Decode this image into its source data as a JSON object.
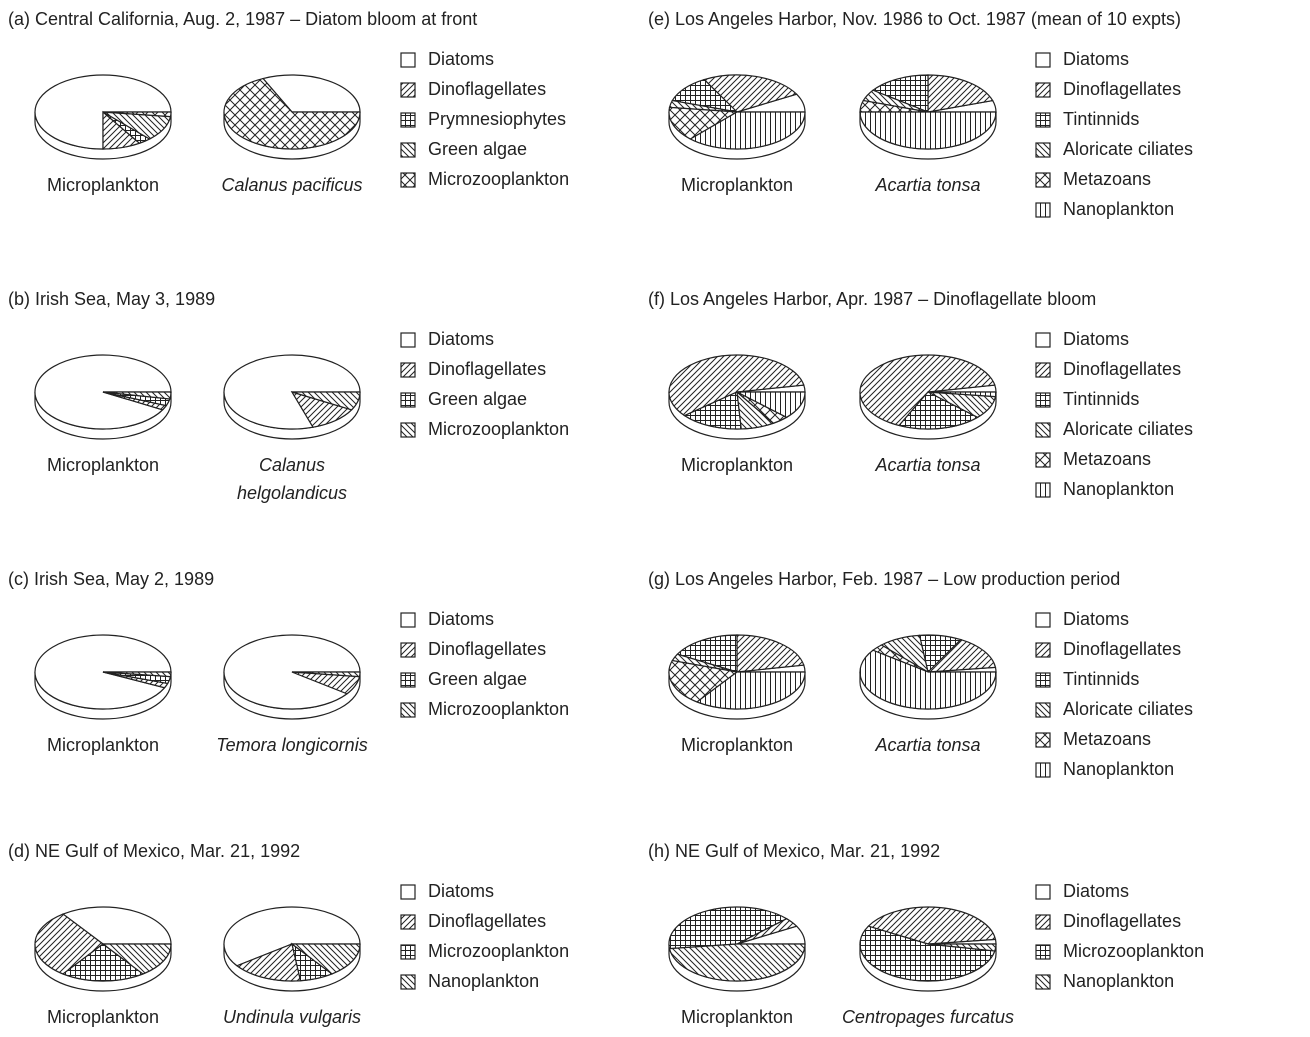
{
  "chart_data": [
    {
      "type": "pie",
      "title": "(a) Central California,  Aug. 2, 1987  – Diatom bloom at front",
      "categories": [
        "Diatoms",
        "Dinoflagellates",
        "Prymnesiophytes",
        "Green algae",
        "Microzooplankton"
      ],
      "patterns": [
        "none",
        "diag",
        "grid",
        "backdiag",
        "cross"
      ],
      "series": [
        {
          "name": "Microplankton",
          "values": [
            75,
            9,
            3,
            11,
            2
          ]
        },
        {
          "name": "Calanus pacificus",
          "values": [
            32,
            0,
            0,
            0,
            68
          ]
        }
      ]
    },
    {
      "type": "pie",
      "title": "(e) Los Angeles Harbor,  Nov. 1986  to Oct. 1987 (mean of 10 expts)",
      "categories": [
        "Diatoms",
        "Dinoflagellates",
        "Tintinnids",
        "Aloricate ciliates",
        "Metazoans",
        "Nanoplankton"
      ],
      "patterns": [
        "none",
        "diag",
        "grid",
        "backdiag",
        "cross",
        "vertical"
      ],
      "series": [
        {
          "name": "Microplankton",
          "values": [
            8,
            25,
            12,
            3,
            15,
            37
          ]
        },
        {
          "name": "Acartia tonsa",
          "values": [
            5,
            20,
            15,
            5,
            5,
            50
          ]
        }
      ]
    },
    {
      "type": "pie",
      "title": "(b) Irish Sea,  May 3, 1989",
      "categories": [
        "Diatoms",
        "Dinoflagellates",
        "Green algae",
        "Microzooplankton"
      ],
      "patterns": [
        "none",
        "diag",
        "grid",
        "backdiag"
      ],
      "series": [
        {
          "name": "Microplankton",
          "values": [
            92,
            2,
            3,
            3
          ]
        },
        {
          "name": "Calanus helgolandicus",
          "values": [
            80,
            12,
            0,
            8
          ]
        }
      ]
    },
    {
      "type": "pie",
      "title": "(f) Los Angeles Harbor,  Apr. 1987  – Dinoflagellate bloom",
      "categories": [
        "Diatoms",
        "Dinoflagellates",
        "Tintinnids",
        "Aloricate ciliates",
        "Metazoans",
        "Nanoplankton"
      ],
      "patterns": [
        "none",
        "diag",
        "grid",
        "backdiag",
        "cross",
        "vertical"
      ],
      "series": [
        {
          "name": "Microplankton",
          "values": [
            3,
            58,
            15,
            8,
            4,
            12
          ]
        },
        {
          "name": "Acartia tonsa",
          "values": [
            3,
            65,
            20,
            10,
            0,
            2
          ]
        }
      ]
    },
    {
      "type": "pie",
      "title": "(c) Irish Sea,  May 2, 1989",
      "categories": [
        "Diatoms",
        "Dinoflagellates",
        "Green algae",
        "Microzooplankton"
      ],
      "patterns": [
        "none",
        "diag",
        "grid",
        "backdiag"
      ],
      "series": [
        {
          "name": "Microplankton",
          "values": [
            93,
            2,
            3,
            2
          ]
        },
        {
          "name": "Temora longicornis",
          "values": [
            90,
            8,
            0,
            2
          ]
        }
      ]
    },
    {
      "type": "pie",
      "title": "(g) Los Angeles Harbor,  Feb. 1987  – Low production period",
      "categories": [
        "Diatoms",
        "Dinoflagellates",
        "Tintinnids",
        "Aloricate ciliates",
        "Metazoans",
        "Nanoplankton"
      ],
      "patterns": [
        "none",
        "diag",
        "grid",
        "backdiag",
        "cross",
        "vertical"
      ],
      "series": [
        {
          "name": "Microplankton",
          "values": [
            3,
            22,
            17,
            3,
            20,
            35
          ]
        },
        {
          "name": "Acartia tonsa",
          "values": [
            2,
            15,
            10,
            10,
            3,
            60
          ]
        }
      ]
    },
    {
      "type": "pie",
      "title": "(d) NE Gulf of Mexico,  Mar. 21, 1992",
      "categories": [
        "Diatoms",
        "Dinoflagellates",
        "Microzooplankton",
        "Nanoplankton"
      ],
      "patterns": [
        "none",
        "diag",
        "grid",
        "backdiag"
      ],
      "series": [
        {
          "name": "Microplankton",
          "values": [
            35,
            30,
            20,
            15
          ]
        },
        {
          "name": "Undinula vulgaris",
          "values": [
            60,
            17,
            8,
            15
          ]
        }
      ]
    },
    {
      "type": "pie",
      "title": "(h) NE Gulf of Mexico,  Mar. 21, 1992",
      "categories": [
        "Diatoms",
        "Dinoflagellates",
        "Microzooplankton",
        "Nanoplankton"
      ],
      "patterns": [
        "none",
        "diag",
        "grid",
        "backdiag"
      ],
      "series": [
        {
          "name": "Microplankton",
          "values": [
            8,
            4,
            40,
            48
          ]
        },
        {
          "name": "Centropages furcatus",
          "values": [
            2,
            40,
            55,
            3
          ]
        }
      ]
    }
  ]
}
